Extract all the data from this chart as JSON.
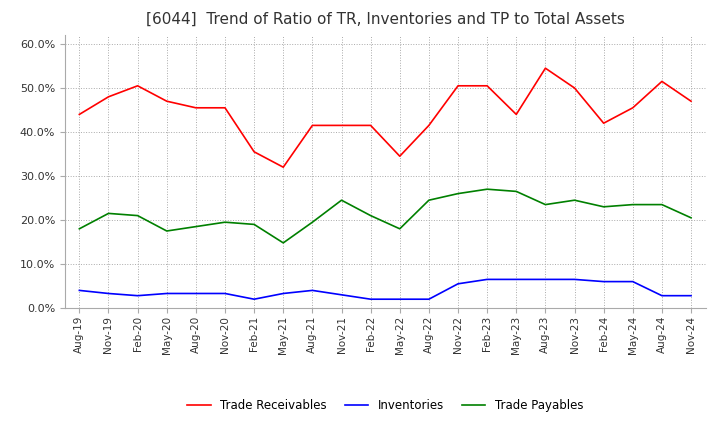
{
  "title": "[6044]  Trend of Ratio of TR, Inventories and TP to Total Assets",
  "title_fontsize": 11,
  "ylim": [
    0.0,
    0.62
  ],
  "yticks": [
    0.0,
    0.1,
    0.2,
    0.3,
    0.4,
    0.5,
    0.6
  ],
  "x_labels": [
    "Aug-19",
    "Nov-19",
    "Feb-20",
    "May-20",
    "Aug-20",
    "Nov-20",
    "Feb-21",
    "May-21",
    "Aug-21",
    "Nov-21",
    "Feb-22",
    "May-22",
    "Aug-22",
    "Nov-22",
    "Feb-23",
    "May-23",
    "Aug-23",
    "Nov-23",
    "Feb-24",
    "May-24",
    "Aug-24",
    "Nov-24"
  ],
  "trade_receivables": [
    0.44,
    0.48,
    0.505,
    0.47,
    0.455,
    0.455,
    0.355,
    0.32,
    0.415,
    0.415,
    0.415,
    0.345,
    0.415,
    0.505,
    0.505,
    0.44,
    0.545,
    0.5,
    0.42,
    0.455,
    0.515,
    0.47
  ],
  "inventories": [
    0.04,
    0.033,
    0.028,
    0.033,
    0.033,
    0.033,
    0.02,
    0.033,
    0.04,
    0.03,
    0.02,
    0.02,
    0.02,
    0.055,
    0.065,
    0.065,
    0.065,
    0.065,
    0.06,
    0.06,
    0.028,
    0.028
  ],
  "trade_payables": [
    0.18,
    0.215,
    0.21,
    0.175,
    0.185,
    0.195,
    0.19,
    0.148,
    0.195,
    0.245,
    0.21,
    0.18,
    0.245,
    0.26,
    0.27,
    0.265,
    0.235,
    0.245,
    0.23,
    0.235,
    0.235,
    0.205
  ],
  "tr_color": "#ff0000",
  "inv_color": "#0000ff",
  "tp_color": "#008000",
  "legend_labels": [
    "Trade Receivables",
    "Inventories",
    "Trade Payables"
  ],
  "grid_color": "#aaaaaa",
  "background_color": "#ffffff",
  "title_color": "#333333"
}
